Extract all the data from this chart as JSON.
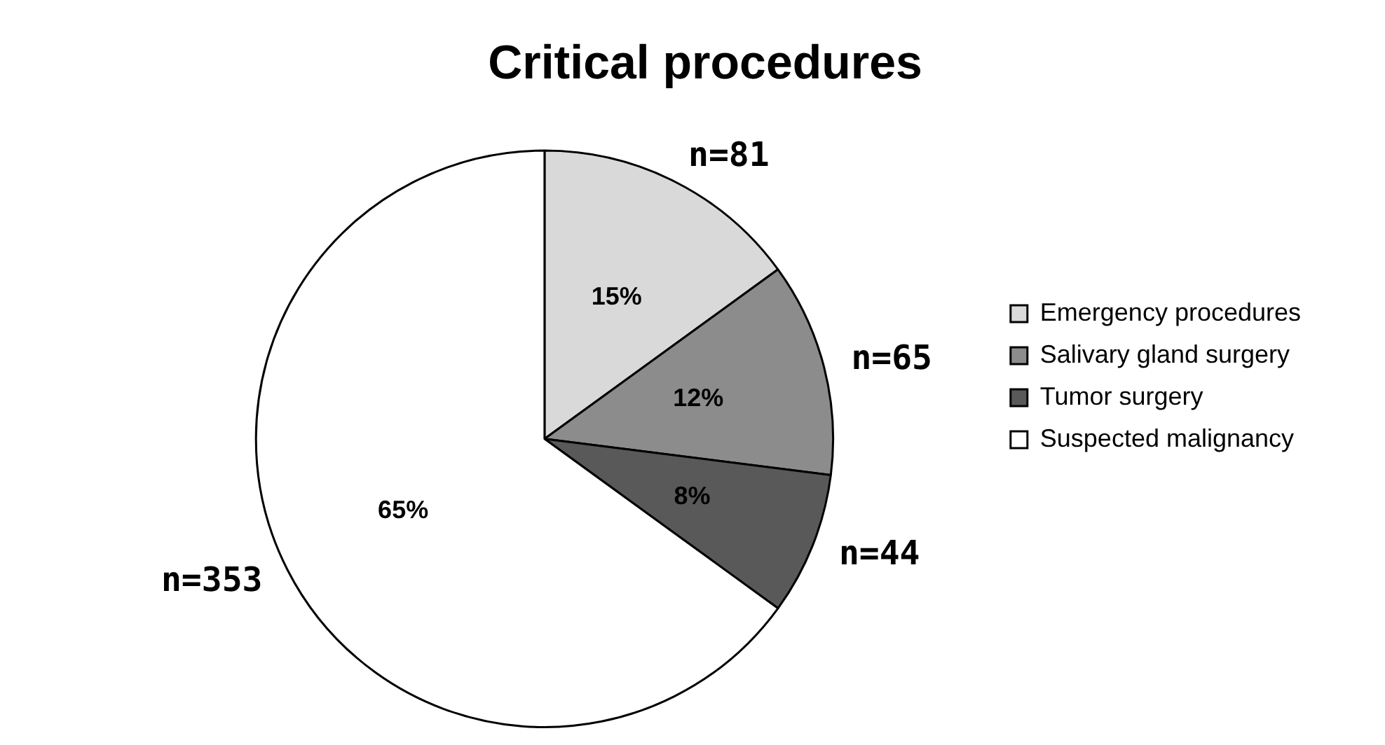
{
  "chart_data": {
    "type": "pie",
    "title": "Critical procedures",
    "categories": [
      "Emergency procedures",
      "Salivary gland surgery",
      "Tumor surgery",
      "Suspected malignancy"
    ],
    "values": [
      15,
      12,
      8,
      65
    ],
    "colors": [
      "#d9d9d9",
      "#8c8c8c",
      "#595959",
      "#ffffff"
    ],
    "value_labels": [
      "15%",
      "12%",
      "8%",
      "65%"
    ],
    "annotations": [
      {
        "text": "n=81",
        "x": "Emergency procedures"
      },
      {
        "text": "n=65",
        "x": "Salivary gland surgery"
      },
      {
        "text": "n=44",
        "x": "Tumor surgery"
      },
      {
        "text": "n=353",
        "x": "Suspected malignancy"
      }
    ],
    "legend": "right"
  }
}
